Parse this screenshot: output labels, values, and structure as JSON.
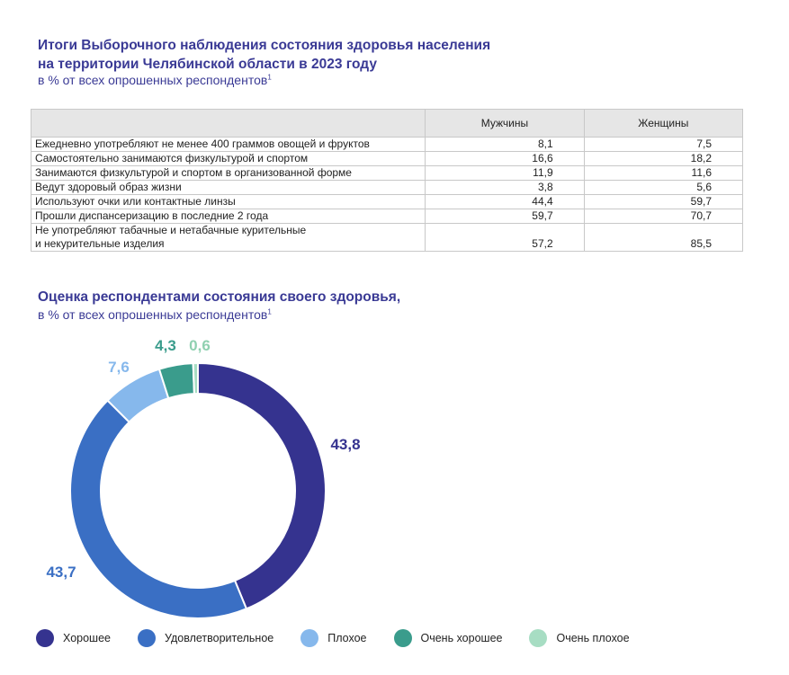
{
  "section1": {
    "title_line1": "Итоги Выборочного наблюдения состояния здоровья населения",
    "title_line2": "на территории Челябинской области в 2023 году",
    "subtitle": "в % от всех опрошенных респондентов",
    "footnote": "1"
  },
  "table": {
    "headers": [
      "",
      "Мужчины",
      "Женщины"
    ],
    "rows": [
      {
        "label": "Ежедневно употребляют не менее 400 граммов овощей и фруктов",
        "men": "8,1",
        "women": "7,5"
      },
      {
        "label": "Самостоятельно занимаются физкультурой и спортом",
        "men": "16,6",
        "women": "18,2"
      },
      {
        "label": "Занимаются физкультурой и спортом в организованной форме",
        "men": "11,9",
        "women": "11,6"
      },
      {
        "label": "Ведут здоровый образ жизни",
        "men": "3,8",
        "women": "5,6"
      },
      {
        "label": "Используют очки или контактные линзы",
        "men": "44,4",
        "women": "59,7"
      },
      {
        "label": "Прошли диспансеризацию в последние 2 года",
        "men": "59,7",
        "women": "70,7"
      },
      {
        "label_line1": "Не употребляют табачные и нетабачные курительные",
        "label_line2": "и некурительные изделия",
        "men": "57,2",
        "women": "85,5"
      }
    ]
  },
  "section2": {
    "title": "Оценка респондентами состояния своего здоровья,",
    "subtitle": "в % от всех опрошенных респондентов",
    "footnote": "1"
  },
  "chart_data": {
    "type": "pie",
    "title": "Оценка респондентами состояния своего здоровья,",
    "subtitle": "в % от всех опрошенных респондентов",
    "categories": [
      "Хорошее",
      "Удовлетворительное",
      "Плохое",
      "Очень хорошее",
      "Очень плохое"
    ],
    "values": [
      43.8,
      43.7,
      7.6,
      4.3,
      0.6
    ],
    "labels": [
      "43,8",
      "43,7",
      "7,6",
      "4,3",
      "0,6"
    ],
    "colors": [
      "#35338f",
      "#3a6fc4",
      "#86b8ec",
      "#3a9c8c",
      "#a7ddc3"
    ],
    "donut": true,
    "legend_position": "bottom"
  }
}
